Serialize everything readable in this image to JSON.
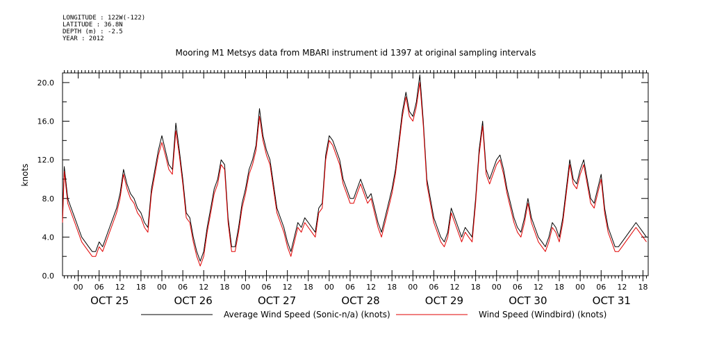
{
  "header": {
    "meta_lines": [
      "LONGITUDE : 122W(-122)",
      "LATITUDE : 36.8N",
      "DEPTH (m) : -2.5",
      "YEAR : 2012"
    ],
    "title": "Mooring M1 Metsys data from MBARI instrument id 1397 at original sampling intervals"
  },
  "chart_data": {
    "type": "line",
    "title": "Mooring M1 Metsys data from MBARI instrument id 1397 at original sampling intervals",
    "ylabel": "knots",
    "xlabel": "",
    "ylim": [
      0,
      21
    ],
    "xlim_hours": [
      -4.5,
      163.5
    ],
    "x_units": "hours after 2012-10-25 00:00",
    "y_ticks": [
      "0.0",
      "4.0",
      "8.0",
      "12.0",
      "16.0",
      "20.0"
    ],
    "hour_tick_labels": [
      "00",
      "06",
      "12",
      "18"
    ],
    "date_labels": [
      "OCT 25",
      "OCT 26",
      "OCT 27",
      "OCT 28",
      "OCT 29",
      "OCT 30",
      "OCT 31"
    ],
    "grid": false,
    "legend_position": "bottom",
    "series": [
      {
        "name": "Average Wind Speed (Sonic-n/a) (knots)",
        "color": "#000000",
        "x": [
          -4.5,
          -4,
          -3,
          -2,
          -1,
          0,
          1,
          2,
          3,
          4,
          5,
          6,
          7,
          8,
          9,
          10,
          11,
          12,
          13,
          14,
          15,
          16,
          17,
          18,
          19,
          20,
          21,
          22,
          23,
          24,
          25,
          26,
          27,
          28,
          29,
          30,
          31,
          32,
          33,
          34,
          35,
          36,
          37,
          38,
          39,
          40,
          41,
          42,
          43,
          44,
          45,
          46,
          47,
          48,
          49,
          50,
          51,
          52,
          53,
          54,
          55,
          56,
          57,
          58,
          59,
          60,
          61,
          62,
          63,
          64,
          65,
          66,
          67,
          68,
          69,
          70,
          71,
          72,
          73,
          74,
          75,
          76,
          77,
          78,
          79,
          80,
          81,
          82,
          83,
          84,
          85,
          86,
          87,
          88,
          89,
          90,
          91,
          92,
          93,
          94,
          95,
          96,
          97,
          98,
          99,
          100,
          101,
          102,
          103,
          104,
          105,
          106,
          107,
          108,
          109,
          110,
          111,
          112,
          113,
          114,
          115,
          116,
          117,
          118,
          119,
          120,
          121,
          122,
          123,
          124,
          125,
          126,
          127,
          128,
          129,
          130,
          131,
          132,
          133,
          134,
          135,
          136,
          137,
          138,
          139,
          140,
          141,
          142,
          143,
          144,
          145,
          146,
          147,
          148,
          149,
          150,
          151,
          152,
          153,
          154,
          155,
          156,
          157,
          158,
          159,
          160,
          161,
          162,
          163
        ],
        "values": [
          6.0,
          11.3,
          8.0,
          7.0,
          6.0,
          5.0,
          4.0,
          3.5,
          3.0,
          2.5,
          2.5,
          3.5,
          3.0,
          4.0,
          5.0,
          6.0,
          7.0,
          8.5,
          11.0,
          9.5,
          8.5,
          8.0,
          7.0,
          6.5,
          5.5,
          5.0,
          9.0,
          11.0,
          13.0,
          14.5,
          13.0,
          11.5,
          11.0,
          15.8,
          13.0,
          10.0,
          6.5,
          6.0,
          4.0,
          2.5,
          1.5,
          2.5,
          5.0,
          7.0,
          9.0,
          10.0,
          12.0,
          11.5,
          6.0,
          3.0,
          3.0,
          5.0,
          7.5,
          9.0,
          11.0,
          12.0,
          13.5,
          17.3,
          14.5,
          13.0,
          12.0,
          9.5,
          7.0,
          6.0,
          5.0,
          3.5,
          2.5,
          4.0,
          5.5,
          5.0,
          6.0,
          5.5,
          5.0,
          4.5,
          7.0,
          7.5,
          12.5,
          14.5,
          14.0,
          13.0,
          12.0,
          10.0,
          9.0,
          8.0,
          8.0,
          9.0,
          10.0,
          9.0,
          8.0,
          8.5,
          7.0,
          5.5,
          4.5,
          6.0,
          7.5,
          9.0,
          11.0,
          14.0,
          17.0,
          19.0,
          17.0,
          16.5,
          18.0,
          20.8,
          16.0,
          10.0,
          8.0,
          6.0,
          5.0,
          4.0,
          3.5,
          4.5,
          7.0,
          6.0,
          5.0,
          4.0,
          5.0,
          4.5,
          4.0,
          8.0,
          13.0,
          16.0,
          11.0,
          10.0,
          11.0,
          12.0,
          12.5,
          11.0,
          9.0,
          7.5,
          6.0,
          5.0,
          4.5,
          6.0,
          8.0,
          6.0,
          5.0,
          4.0,
          3.5,
          3.0,
          4.0,
          5.5,
          5.0,
          4.0,
          6.0,
          9.0,
          12.0,
          10.0,
          9.5,
          11.0,
          12.0,
          10.0,
          8.0,
          7.5,
          9.0,
          10.5,
          7.0,
          5.0,
          4.0,
          3.0,
          3.0,
          3.5,
          4.0,
          4.5,
          5.0,
          5.5,
          5.0,
          4.5,
          4.0
        ]
      },
      {
        "name": "Wind Speed (Windbird) (knots)",
        "color": "#e00000",
        "x": [
          -4.5,
          -4,
          -3,
          -2,
          -1,
          0,
          1,
          2,
          3,
          4,
          5,
          6,
          7,
          8,
          9,
          10,
          11,
          12,
          13,
          14,
          15,
          16,
          17,
          18,
          19,
          20,
          21,
          22,
          23,
          24,
          25,
          26,
          27,
          28,
          29,
          30,
          31,
          32,
          33,
          34,
          35,
          36,
          37,
          38,
          39,
          40,
          41,
          42,
          43,
          44,
          45,
          46,
          47,
          48,
          49,
          50,
          51,
          52,
          53,
          54,
          55,
          56,
          57,
          58,
          59,
          60,
          61,
          62,
          63,
          64,
          65,
          66,
          67,
          68,
          69,
          70,
          71,
          72,
          73,
          74,
          75,
          76,
          77,
          78,
          79,
          80,
          81,
          82,
          83,
          84,
          85,
          86,
          87,
          88,
          89,
          90,
          91,
          92,
          93,
          94,
          95,
          96,
          97,
          98,
          99,
          100,
          101,
          102,
          103,
          104,
          105,
          106,
          107,
          108,
          109,
          110,
          111,
          112,
          113,
          114,
          115,
          116,
          117,
          118,
          119,
          120,
          121,
          122,
          123,
          124,
          125,
          126,
          127,
          128,
          129,
          130,
          131,
          132,
          133,
          134,
          135,
          136,
          137,
          138,
          139,
          140,
          141,
          142,
          143,
          144,
          145,
          146,
          147,
          148,
          149,
          150,
          151,
          152,
          153,
          154,
          155,
          156,
          157,
          158,
          159,
          160,
          161,
          162,
          163
        ],
        "values": [
          5.5,
          10.8,
          7.5,
          6.5,
          5.5,
          4.5,
          3.5,
          3.0,
          2.5,
          2.0,
          2.0,
          3.0,
          2.5,
          3.5,
          4.5,
          5.5,
          6.5,
          8.0,
          10.5,
          9.0,
          8.0,
          7.5,
          6.5,
          6.0,
          5.0,
          4.5,
          8.5,
          10.5,
          12.5,
          13.8,
          12.5,
          11.0,
          10.5,
          15.0,
          12.5,
          9.5,
          6.0,
          5.5,
          3.5,
          2.0,
          1.0,
          2.0,
          4.5,
          6.5,
          8.5,
          9.5,
          11.5,
          11.0,
          5.5,
          2.5,
          2.5,
          4.5,
          7.0,
          8.5,
          10.5,
          11.5,
          13.0,
          16.5,
          14.0,
          12.5,
          11.5,
          9.0,
          6.5,
          5.5,
          4.5,
          3.0,
          2.0,
          3.5,
          5.0,
          4.5,
          5.5,
          5.0,
          4.5,
          4.0,
          6.5,
          7.0,
          12.0,
          14.0,
          13.5,
          12.5,
          11.5,
          9.5,
          8.5,
          7.5,
          7.5,
          8.5,
          9.5,
          8.5,
          7.5,
          8.0,
          6.5,
          5.0,
          4.0,
          5.5,
          7.0,
          8.5,
          10.5,
          13.5,
          16.5,
          18.5,
          16.5,
          16.0,
          17.5,
          20.0,
          15.5,
          9.5,
          7.5,
          5.5,
          4.5,
          3.5,
          3.0,
          4.0,
          6.5,
          5.5,
          4.5,
          3.5,
          4.5,
          4.0,
          3.5,
          7.5,
          12.5,
          15.5,
          10.5,
          9.5,
          10.5,
          11.5,
          12.0,
          10.5,
          8.5,
          7.0,
          5.5,
          4.5,
          4.0,
          5.5,
          7.5,
          5.5,
          4.5,
          3.5,
          3.0,
          2.5,
          3.5,
          5.0,
          4.5,
          3.5,
          5.5,
          8.5,
          11.5,
          9.5,
          9.0,
          10.5,
          11.5,
          9.5,
          7.5,
          7.0,
          8.5,
          10.0,
          6.5,
          4.5,
          3.5,
          2.5,
          2.5,
          3.0,
          3.5,
          4.0,
          4.5,
          5.0,
          4.5,
          4.0,
          3.5
        ]
      }
    ]
  }
}
